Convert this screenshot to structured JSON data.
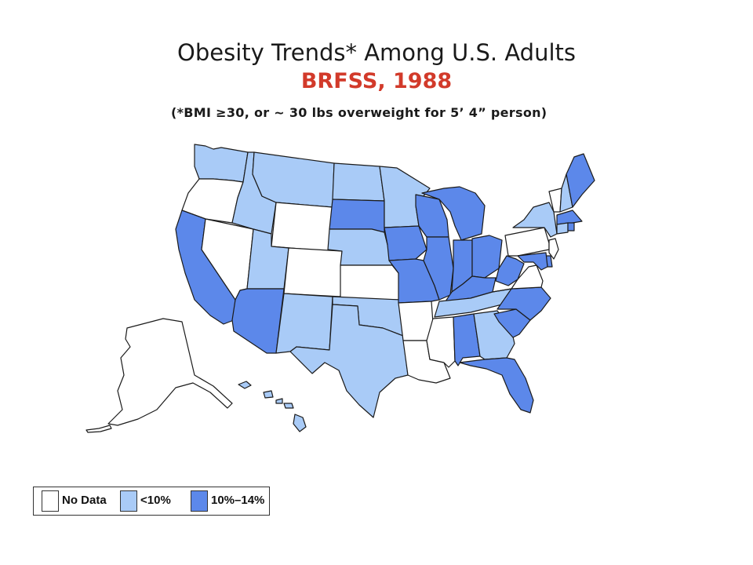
{
  "title": "Obesity Trends* Among U.S. Adults",
  "subtitle": "BRFSS, 1988",
  "note": "(*BMI ≥30, or ~ 30 lbs overweight for 5’ 4” person)",
  "colors": {
    "no_data": "#ffffff",
    "lt10": "#a9cbf7",
    "p10_14": "#5c88ea",
    "title_accent": "#d23a2a",
    "border": "#1b1b1b"
  },
  "legend": [
    {
      "label": "No Data",
      "category": "no_data"
    },
    {
      "label": "<10%",
      "category": "lt10"
    },
    {
      "label": "10%–14%",
      "category": "p10_14"
    }
  ],
  "states": {
    "WA": "lt10",
    "OR": "no_data",
    "CA": "p10_14",
    "NV": "no_data",
    "ID": "lt10",
    "MT": "lt10",
    "WY": "no_data",
    "UT": "lt10",
    "AZ": "p10_14",
    "CO": "no_data",
    "NM": "lt10",
    "ND": "lt10",
    "SD": "p10_14",
    "NE": "lt10",
    "KS": "no_data",
    "OK": "lt10",
    "TX": "lt10",
    "MN": "lt10",
    "IA": "p10_14",
    "MO": "p10_14",
    "AR": "no_data",
    "LA": "no_data",
    "WI": "p10_14",
    "IL": "p10_14",
    "MI": "p10_14",
    "IN": "p10_14",
    "OH": "p10_14",
    "KY": "p10_14",
    "TN": "lt10",
    "MS": "no_data",
    "AL": "p10_14",
    "GA": "lt10",
    "FL": "p10_14",
    "SC": "p10_14",
    "NC": "p10_14",
    "VA": "no_data",
    "WV": "p10_14",
    "PA": "no_data",
    "NY": "lt10",
    "VT": "no_data",
    "NH": "lt10",
    "ME": "p10_14",
    "MA": "p10_14",
    "RI": "p10_14",
    "CT": "lt10",
    "NJ": "no_data",
    "DE": "p10_14",
    "MD": "p10_14",
    "AK": "no_data",
    "HI": "lt10"
  }
}
